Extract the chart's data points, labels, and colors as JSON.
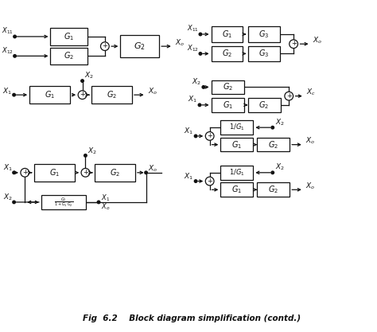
{
  "title": "Fig  6.2    Block diagram simplification (contd.)",
  "bg_color": "#ffffff",
  "line_color": "#111111"
}
